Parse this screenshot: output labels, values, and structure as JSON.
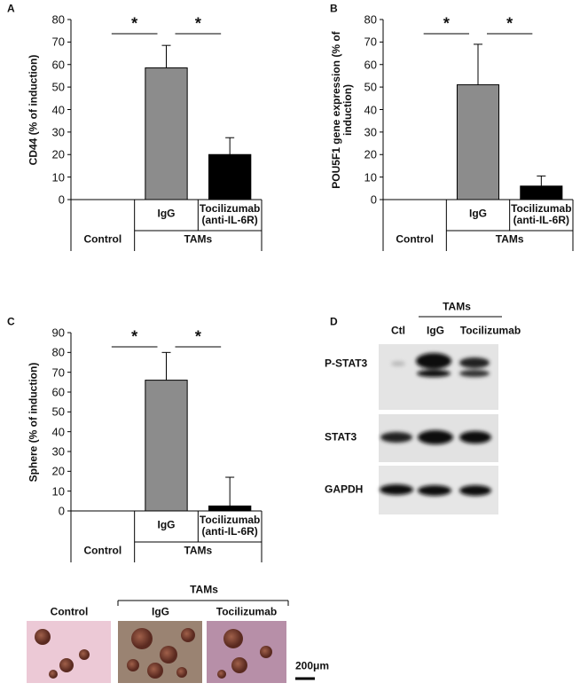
{
  "chart_data": [
    {
      "type": "bar",
      "panel": "A",
      "ylabel": "CD44 (% of induction)",
      "categories": [
        "Control",
        "IgG",
        "Tocilizumab (anti-IL-6R)"
      ],
      "group_label": "TAMs",
      "values": [
        0,
        58.5,
        20
      ],
      "errors": [
        null,
        10,
        7.5
      ],
      "colors": [
        "#ffffff",
        "#8c8c8c",
        "#000000"
      ],
      "ylim": [
        0,
        80
      ],
      "yticks": [
        0,
        10,
        20,
        30,
        40,
        50,
        60,
        70,
        80
      ],
      "significance_labels": [
        "*",
        "*"
      ]
    },
    {
      "type": "bar",
      "panel": "B",
      "ylabel": "POU5F1 gene expression (% of induction)",
      "categories": [
        "Control",
        "IgG",
        "Tocilizumab (anti-IL-6R)"
      ],
      "group_label": "TAMs",
      "values": [
        0,
        51,
        6
      ],
      "errors": [
        null,
        18,
        4.5
      ],
      "colors": [
        "#ffffff",
        "#8c8c8c",
        "#000000"
      ],
      "ylim": [
        0,
        80
      ],
      "yticks": [
        0,
        10,
        20,
        30,
        40,
        50,
        60,
        70,
        80
      ],
      "significance_labels": [
        "*",
        "*"
      ]
    },
    {
      "type": "bar",
      "panel": "C",
      "ylabel": "Sphere (% of induction)",
      "categories": [
        "Control",
        "IgG",
        "Tocilizumab (anti-IL-6R)"
      ],
      "group_label": "TAMs",
      "values": [
        0,
        66,
        2.5
      ],
      "errors": [
        null,
        14,
        14.5
      ],
      "colors": [
        "#ffffff",
        "#8c8c8c",
        "#000000"
      ],
      "ylim": [
        0,
        90
      ],
      "yticks": [
        0,
        10,
        20,
        30,
        40,
        50,
        60,
        70,
        80,
        90
      ],
      "significance_labels": [
        "*",
        "*"
      ]
    }
  ],
  "blot": {
    "panel": "D",
    "group_label": "TAMs",
    "lanes": [
      "Ctl",
      "IgG",
      "Tocilizumab"
    ],
    "rows": [
      "P-STAT3",
      "STAT3",
      "GAPDH"
    ]
  },
  "spheres": {
    "group_label": "TAMs",
    "labels": [
      "Control",
      "IgG",
      "Tocilizumab"
    ],
    "scale_bar": "200μm"
  }
}
